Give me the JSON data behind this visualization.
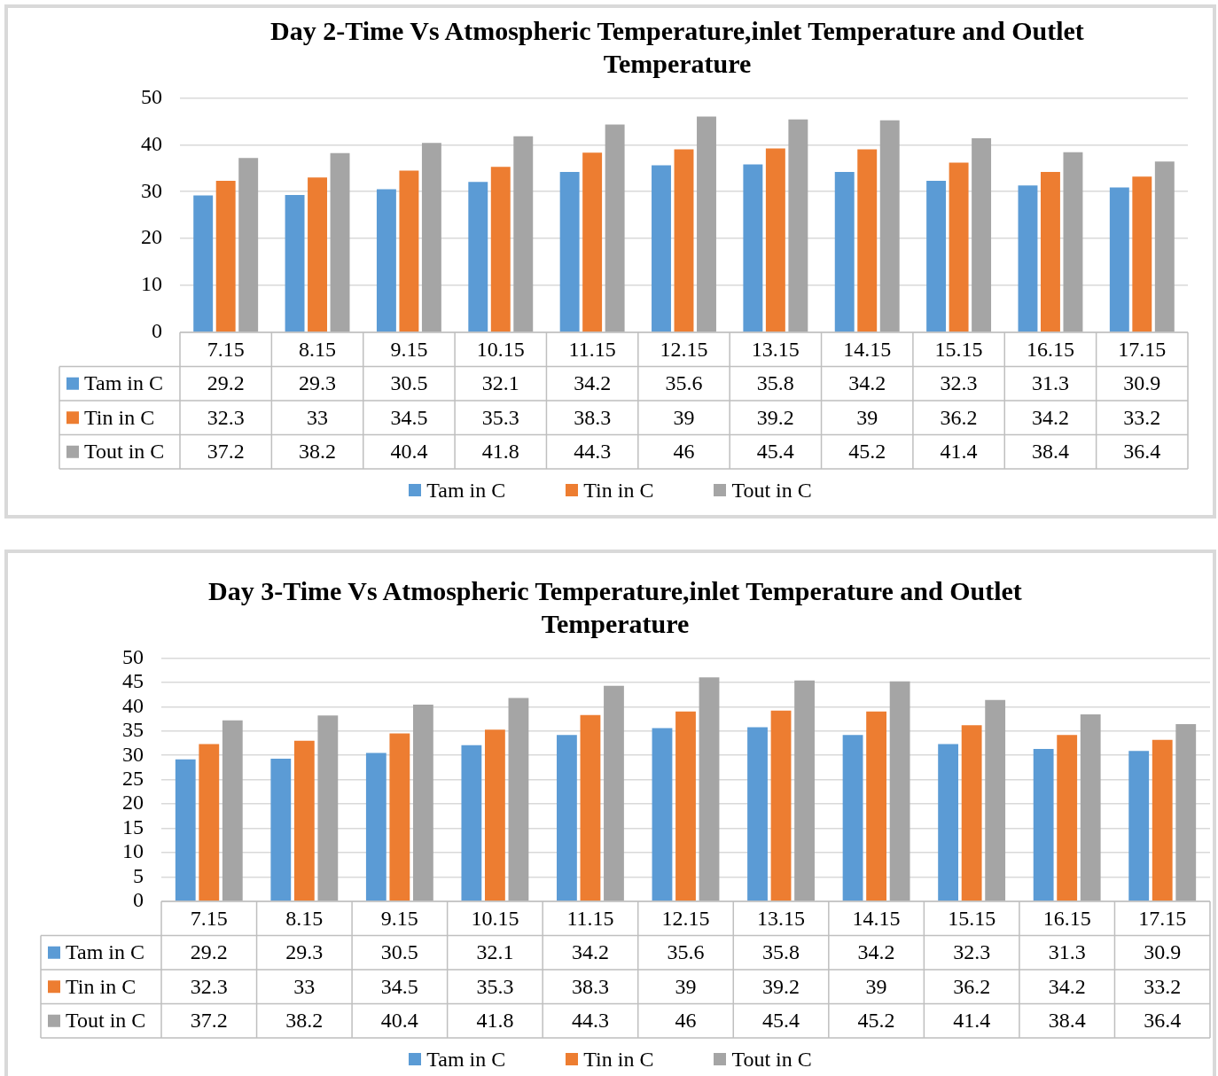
{
  "chart_data": [
    {
      "type": "bar",
      "title": "Day 2-Time Vs Atmospheric Temperature,inlet Temperature and Outlet Temperature",
      "categories": [
        "7.15",
        "8.15",
        "9.15",
        "10.15",
        "11.15",
        "12.15",
        "13.15",
        "14.15",
        "15.15",
        "16.15",
        "17.15"
      ],
      "series": [
        {
          "name": "Tam in C",
          "color": "#5b9bd5",
          "values": [
            29.2,
            29.3,
            30.5,
            32.1,
            34.2,
            35.6,
            35.8,
            34.2,
            32.3,
            31.3,
            30.9
          ]
        },
        {
          "name": "Tin in C",
          "color": "#ed7d31",
          "values": [
            32.3,
            33,
            34.5,
            35.3,
            38.3,
            39,
            39.2,
            39,
            36.2,
            34.2,
            33.2
          ]
        },
        {
          "name": "Tout in C",
          "color": "#a5a5a5",
          "values": [
            37.2,
            38.2,
            40.4,
            41.8,
            44.3,
            46,
            45.4,
            45.2,
            41.4,
            38.4,
            36.4
          ]
        }
      ],
      "ylim": [
        0,
        50
      ],
      "yticks": [
        0,
        10,
        20,
        30,
        40,
        50
      ],
      "grid": "y",
      "legend": "bottom",
      "data_labels": true
    },
    {
      "type": "bar",
      "title": "Day 3-Time Vs Atmospheric Temperature,inlet Temperature and Outlet Temperature",
      "categories": [
        "7.15",
        "8.15",
        "9.15",
        "10.15",
        "11.15",
        "12.15",
        "13.15",
        "14.15",
        "15.15",
        "16.15",
        "17.15"
      ],
      "series": [
        {
          "name": "Tam in C",
          "color": "#5b9bd5",
          "values": [
            29.2,
            29.3,
            30.5,
            32.1,
            34.2,
            35.6,
            35.8,
            34.2,
            32.3,
            31.3,
            30.9
          ]
        },
        {
          "name": "Tin in C",
          "color": "#ed7d31",
          "values": [
            32.3,
            33,
            34.5,
            35.3,
            38.3,
            39,
            39.2,
            39,
            36.2,
            34.2,
            33.2
          ]
        },
        {
          "name": "Tout in C",
          "color": "#a5a5a5",
          "values": [
            37.2,
            38.2,
            40.4,
            41.8,
            44.3,
            46,
            45.4,
            45.2,
            41.4,
            38.4,
            36.4
          ]
        }
      ],
      "ylim": [
        0,
        50
      ],
      "yticks": [
        0,
        5,
        10,
        15,
        20,
        25,
        30,
        35,
        40,
        45,
        50
      ],
      "grid": "y",
      "legend": "bottom",
      "data_labels": true
    }
  ]
}
